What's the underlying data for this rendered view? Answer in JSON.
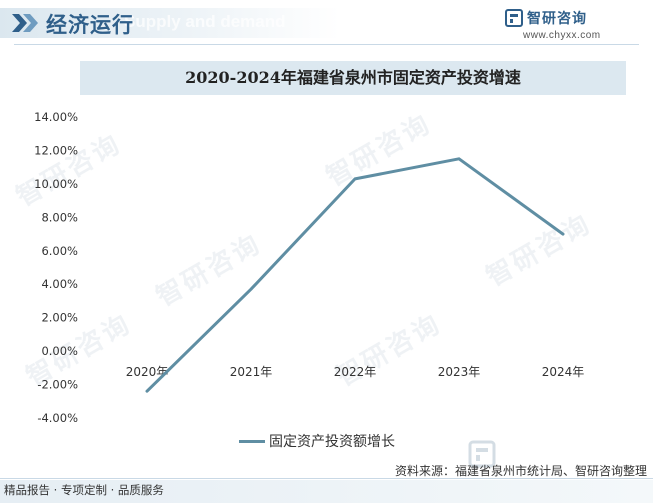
{
  "header": {
    "title": "经济运行",
    "ghost_text": "Supply and demand",
    "brand_name": "智研咨询",
    "brand_url": "www.chyxx.com",
    "accent_color": "#2f5f8a"
  },
  "footer": {
    "left_text": "精品报告 · 专项定制 · 品质服务",
    "source_text": "资料来源：福建省泉州市统计局、智研咨询整理"
  },
  "watermark_text": "智研咨询",
  "chart_data": {
    "type": "line",
    "title": "2020-2024年福建省泉州市固定资产投资增速",
    "categories": [
      "2020年",
      "2021年",
      "2022年",
      "2023年",
      "2024年"
    ],
    "series": [
      {
        "name": "固定资产投资额增长",
        "values": [
          -2.4,
          3.7,
          10.3,
          11.5,
          7.0
        ],
        "color": "#5f8ea3"
      }
    ],
    "y_ticks": [
      "14.00%",
      "12.00%",
      "10.00%",
      "8.00%",
      "6.00%",
      "4.00%",
      "2.00%",
      "0.00%",
      "-2.00%",
      "-4.00%"
    ],
    "ylim": [
      -4,
      14
    ],
    "grid": false,
    "legend_position": "bottom"
  }
}
